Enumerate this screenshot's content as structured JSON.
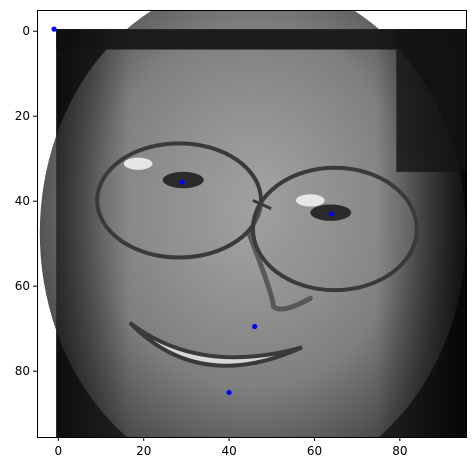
{
  "chart_data": {
    "type": "scatter",
    "title": "",
    "xlabel": "",
    "ylabel": "",
    "xlim": [
      -5,
      95.5
    ],
    "ylim": [
      95.5,
      -5
    ],
    "y_inverted": true,
    "xticks": [
      0,
      20,
      40,
      60,
      80
    ],
    "yticks": [
      0,
      20,
      40,
      60,
      80
    ],
    "xtick_labels": [
      "0",
      "20",
      "40",
      "60",
      "80"
    ],
    "ytick_labels": [
      "0",
      "20",
      "40",
      "60",
      "80"
    ],
    "grid": false,
    "image": {
      "description_kind": "grayscale face photo",
      "extent": [
        -0.5,
        95.5,
        95.5,
        -0.5
      ]
    },
    "series": [
      {
        "marker_color": "#0000ff",
        "points": [
          {
            "x": -1,
            "y": -0.5
          },
          {
            "x": 29,
            "y": 35.5
          },
          {
            "x": 64,
            "y": 43
          },
          {
            "x": 46,
            "y": 69.5
          },
          {
            "x": 40,
            "y": 85
          }
        ]
      }
    ]
  }
}
